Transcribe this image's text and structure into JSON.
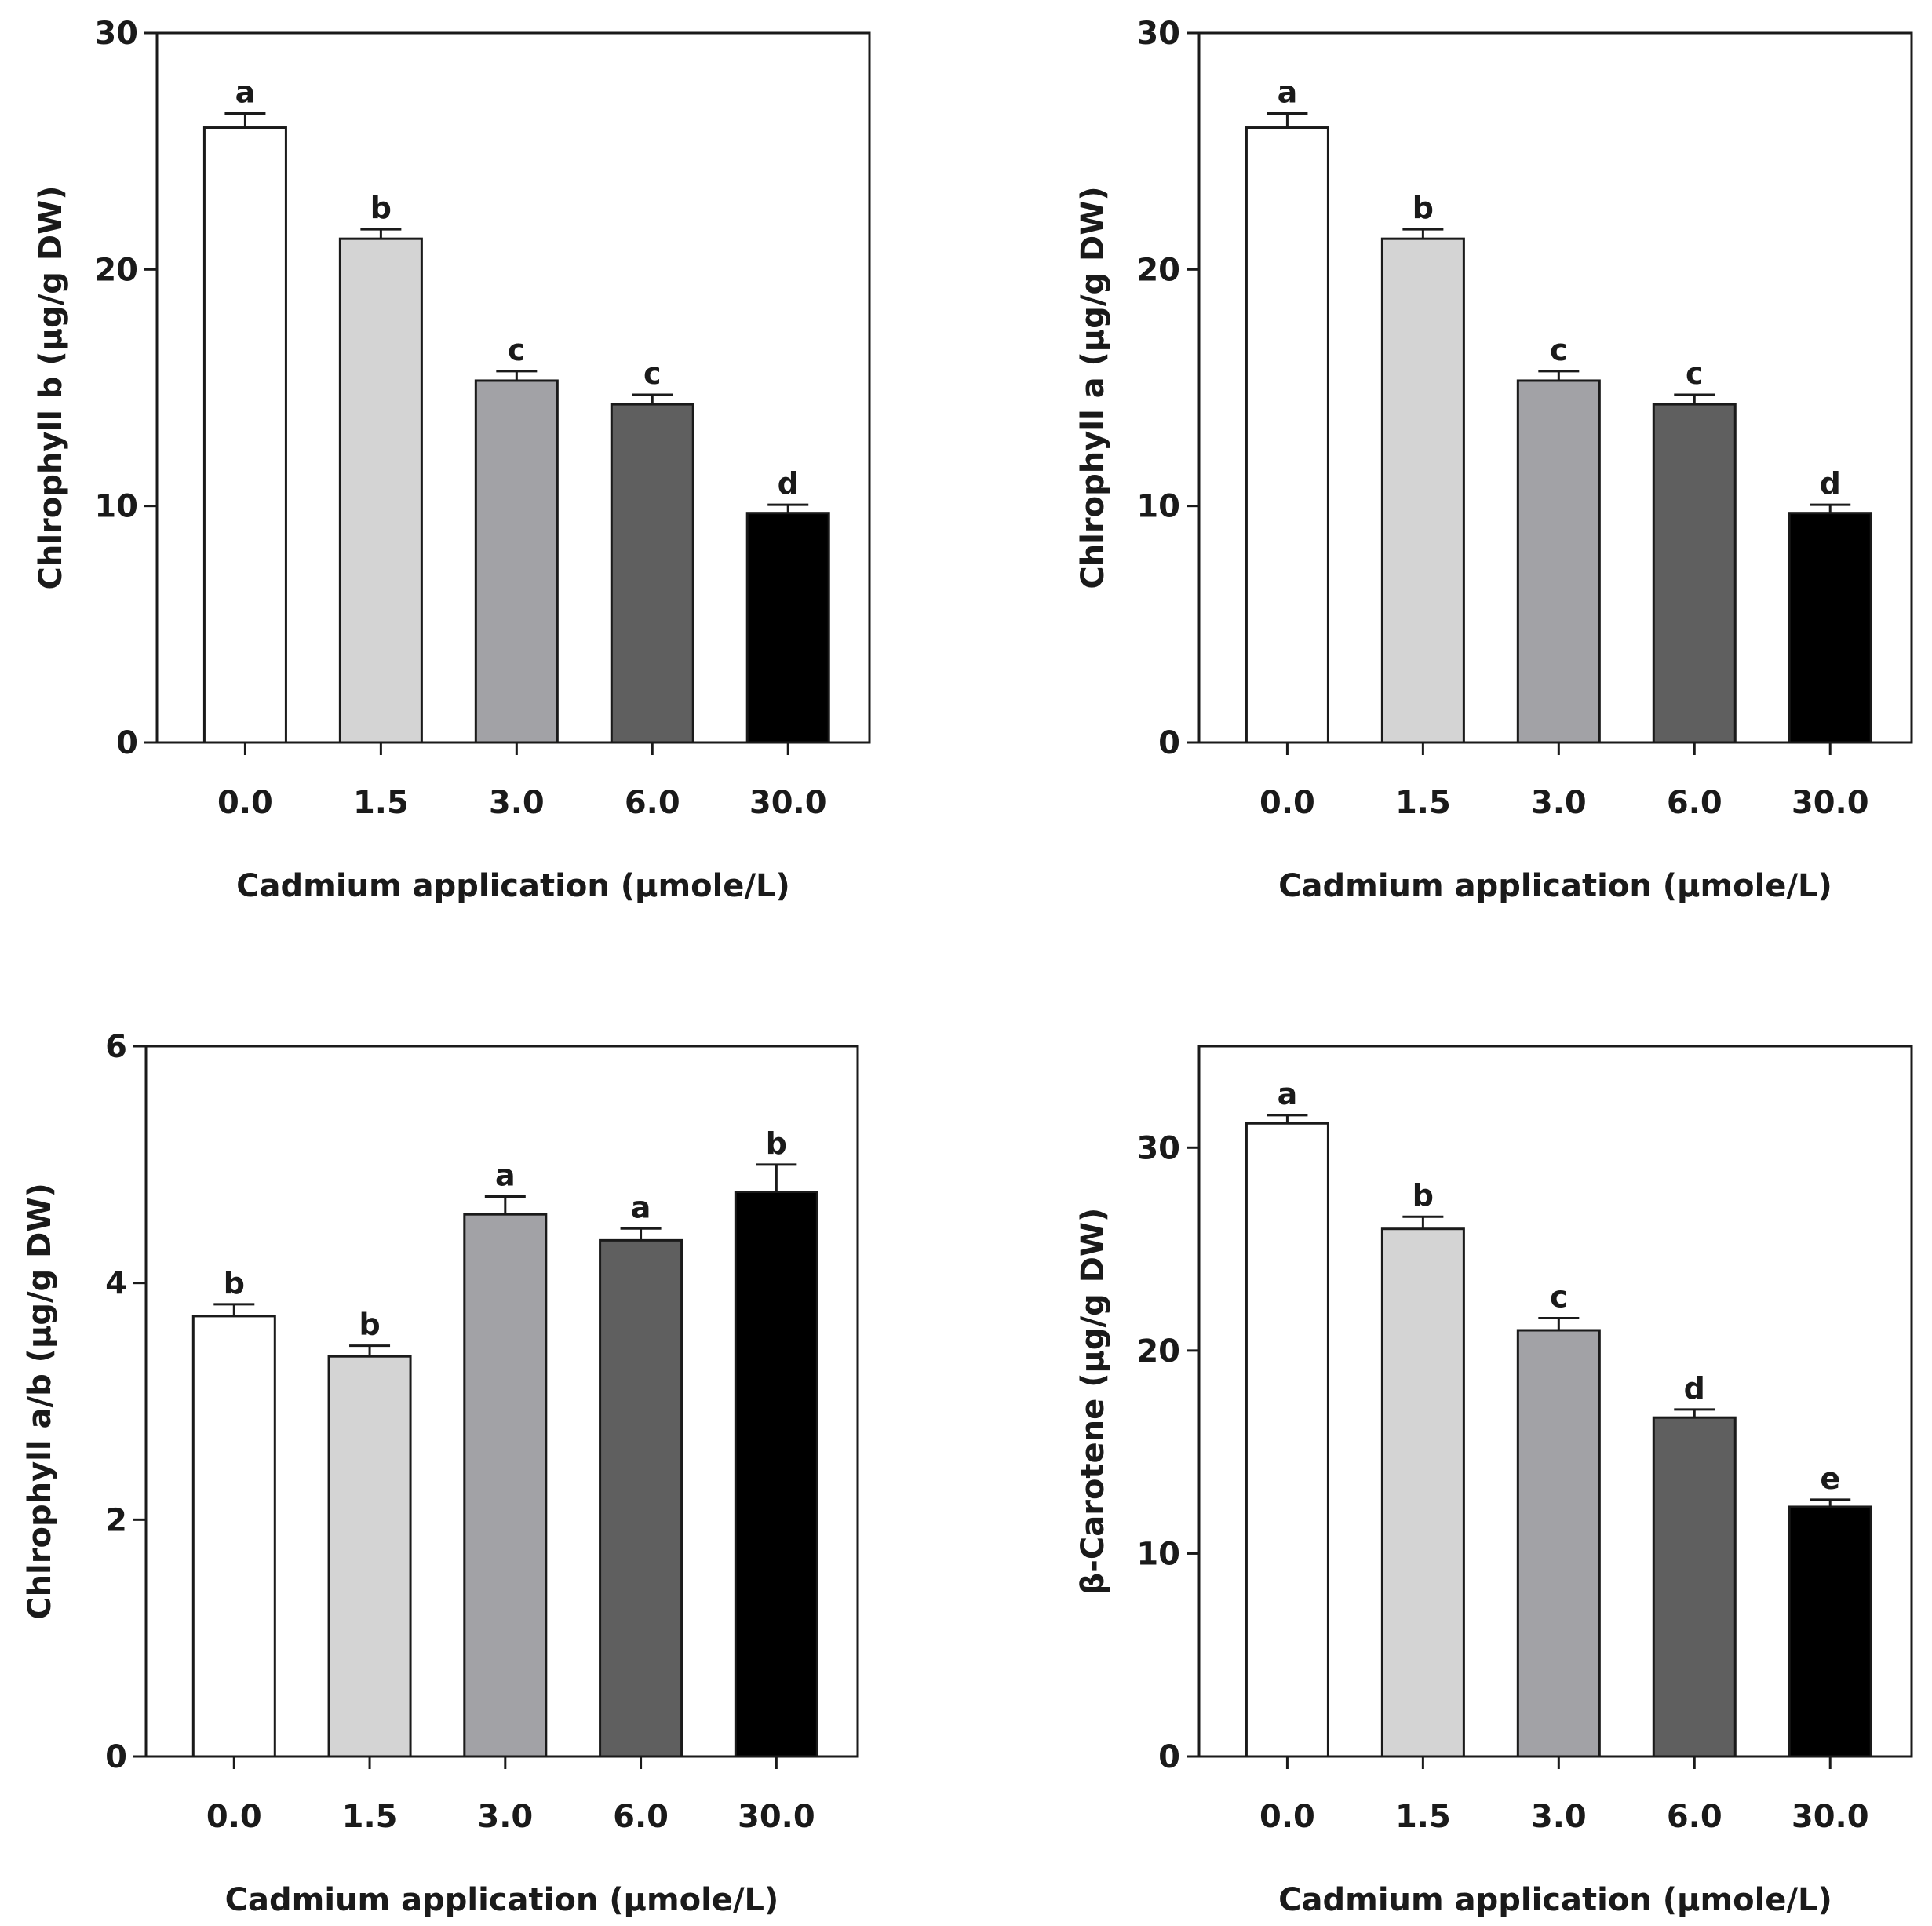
{
  "chart_data": [
    {
      "type": "bar",
      "title": "",
      "xlabel": "Cadmium application (µmole/L)",
      "ylabel": "Chlrophyll b (µg/g DW)",
      "categories": [
        "0.0",
        "1.5",
        "3.0",
        "6.0",
        "30.0"
      ],
      "values": [
        26.0,
        21.3,
        15.3,
        14.3,
        9.7
      ],
      "errors": [
        0.6,
        0.4,
        0.4,
        0.4,
        0.35
      ],
      "letters": [
        "a",
        "b",
        "c",
        "c",
        "d"
      ],
      "ylim": [
        0,
        30
      ],
      "yticks": [
        "0",
        "10",
        "20",
        "30"
      ],
      "colors": [
        "#ffffff",
        "#d4d4d4",
        "#a2a2a6",
        "#5f5f5f",
        "#000000"
      ]
    },
    {
      "type": "bar",
      "title": "",
      "xlabel": "Cadmium application (µmole/L)",
      "ylabel": "Chlrophyll a (µg/g DW)",
      "categories": [
        "0.0",
        "1.5",
        "3.0",
        "6.0",
        "30.0"
      ],
      "values": [
        26.0,
        21.3,
        15.3,
        14.3,
        9.7
      ],
      "errors": [
        0.6,
        0.4,
        0.4,
        0.4,
        0.35
      ],
      "letters": [
        "a",
        "b",
        "c",
        "c",
        "d"
      ],
      "ylim": [
        0,
        30
      ],
      "yticks": [
        "0",
        "10",
        "20",
        "30"
      ],
      "colors": [
        "#ffffff",
        "#d4d4d4",
        "#a2a2a6",
        "#5f5f5f",
        "#000000"
      ]
    },
    {
      "type": "bar",
      "title": "",
      "xlabel": "Cadmium application (µmole/L)",
      "ylabel": "Chlrophyll a/b (µg/g DW)",
      "categories": [
        "0.0",
        "1.5",
        "3.0",
        "6.0",
        "30.0"
      ],
      "values": [
        3.72,
        3.38,
        4.58,
        4.36,
        4.77
      ],
      "errors": [
        0.1,
        0.09,
        0.15,
        0.1,
        0.23
      ],
      "letters": [
        "b",
        "b",
        "a",
        "a",
        "b"
      ],
      "ylim": [
        0,
        6
      ],
      "yticks": [
        "0",
        "2",
        "4",
        "6"
      ],
      "colors": [
        "#ffffff",
        "#d4d4d4",
        "#a2a2a6",
        "#5f5f5f",
        "#000000"
      ]
    },
    {
      "type": "bar",
      "title": "",
      "xlabel": "Cadmium application (µmole/L)",
      "ylabel": "β-Carotene (µg/g DW)",
      "categories": [
        "0.0",
        "1.5",
        "3.0",
        "6.0",
        "30.0"
      ],
      "values": [
        31.2,
        26.0,
        21.0,
        16.7,
        12.3
      ],
      "errors": [
        0.4,
        0.6,
        0.6,
        0.4,
        0.35
      ],
      "letters": [
        "a",
        "b",
        "c",
        "d",
        "e"
      ],
      "ylim": [
        0,
        35
      ],
      "yticks": [
        "0",
        "10",
        "20",
        "30"
      ],
      "colors": [
        "#ffffff",
        "#d4d4d4",
        "#a2a2a6",
        "#5f5f5f",
        "#000000"
      ]
    }
  ]
}
